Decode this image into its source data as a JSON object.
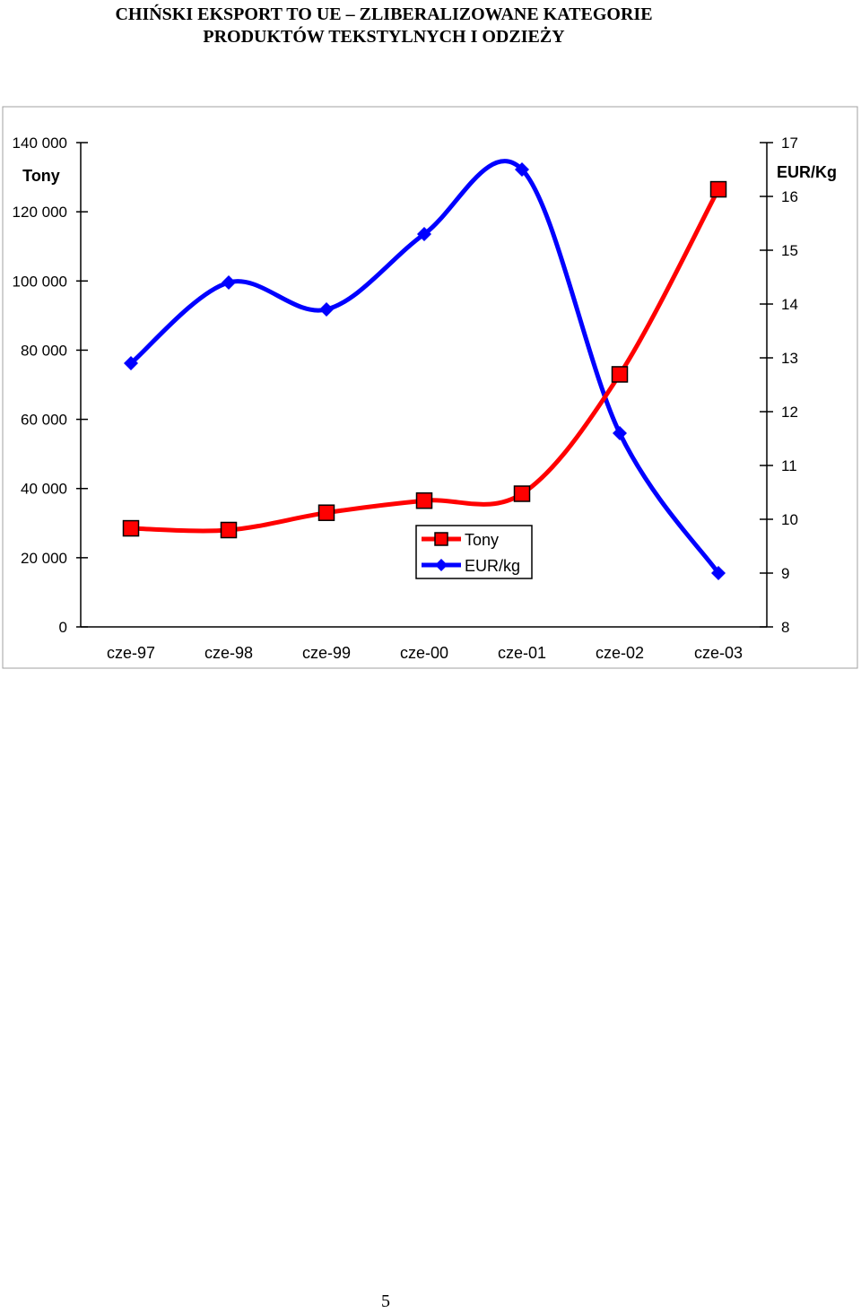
{
  "title_line1": "CHIŃSKI EKSPORT TO UE – ZLIBERALIZOWANE KATEGORIE",
  "title_line2": "PRODUKTÓW TEKSTYLNYCH I ODZIEŻY",
  "page_number": "5",
  "chart_data": {
    "type": "line",
    "categories": [
      "cze-97",
      "cze-98",
      "cze-99",
      "cze-00",
      "cze-01",
      "cze-02",
      "cze-03"
    ],
    "y_left": {
      "label": "Tony",
      "range": [
        0,
        140000
      ],
      "ticks": [
        0,
        20000,
        40000,
        60000,
        80000,
        100000,
        120000,
        140000
      ],
      "tick_labels": [
        "0",
        "20 000",
        "40 000",
        "60 000",
        "80 000",
        "100 000",
        "120 000",
        "140 000"
      ]
    },
    "y_right": {
      "label": "EUR/Kg",
      "range": [
        8,
        17
      ],
      "ticks": [
        8,
        9,
        10,
        11,
        12,
        13,
        14,
        15,
        16,
        17
      ],
      "tick_labels": [
        "8",
        "9",
        "10",
        "11",
        "12",
        "13",
        "14",
        "15",
        "16",
        "17"
      ]
    },
    "series": [
      {
        "name": "Tony",
        "axis": "left",
        "color": "#ff0000",
        "marker": "square",
        "values": [
          28500,
          28000,
          33000,
          36500,
          38500,
          73000,
          126500
        ]
      },
      {
        "name": "EUR/kg",
        "axis": "right",
        "color": "#0000ff",
        "marker": "diamond",
        "values": [
          12.9,
          14.4,
          13.9,
          15.3,
          16.5,
          11.6,
          9.0
        ]
      }
    ],
    "legend": {
      "placement": "bottom-center"
    },
    "grid": false
  }
}
